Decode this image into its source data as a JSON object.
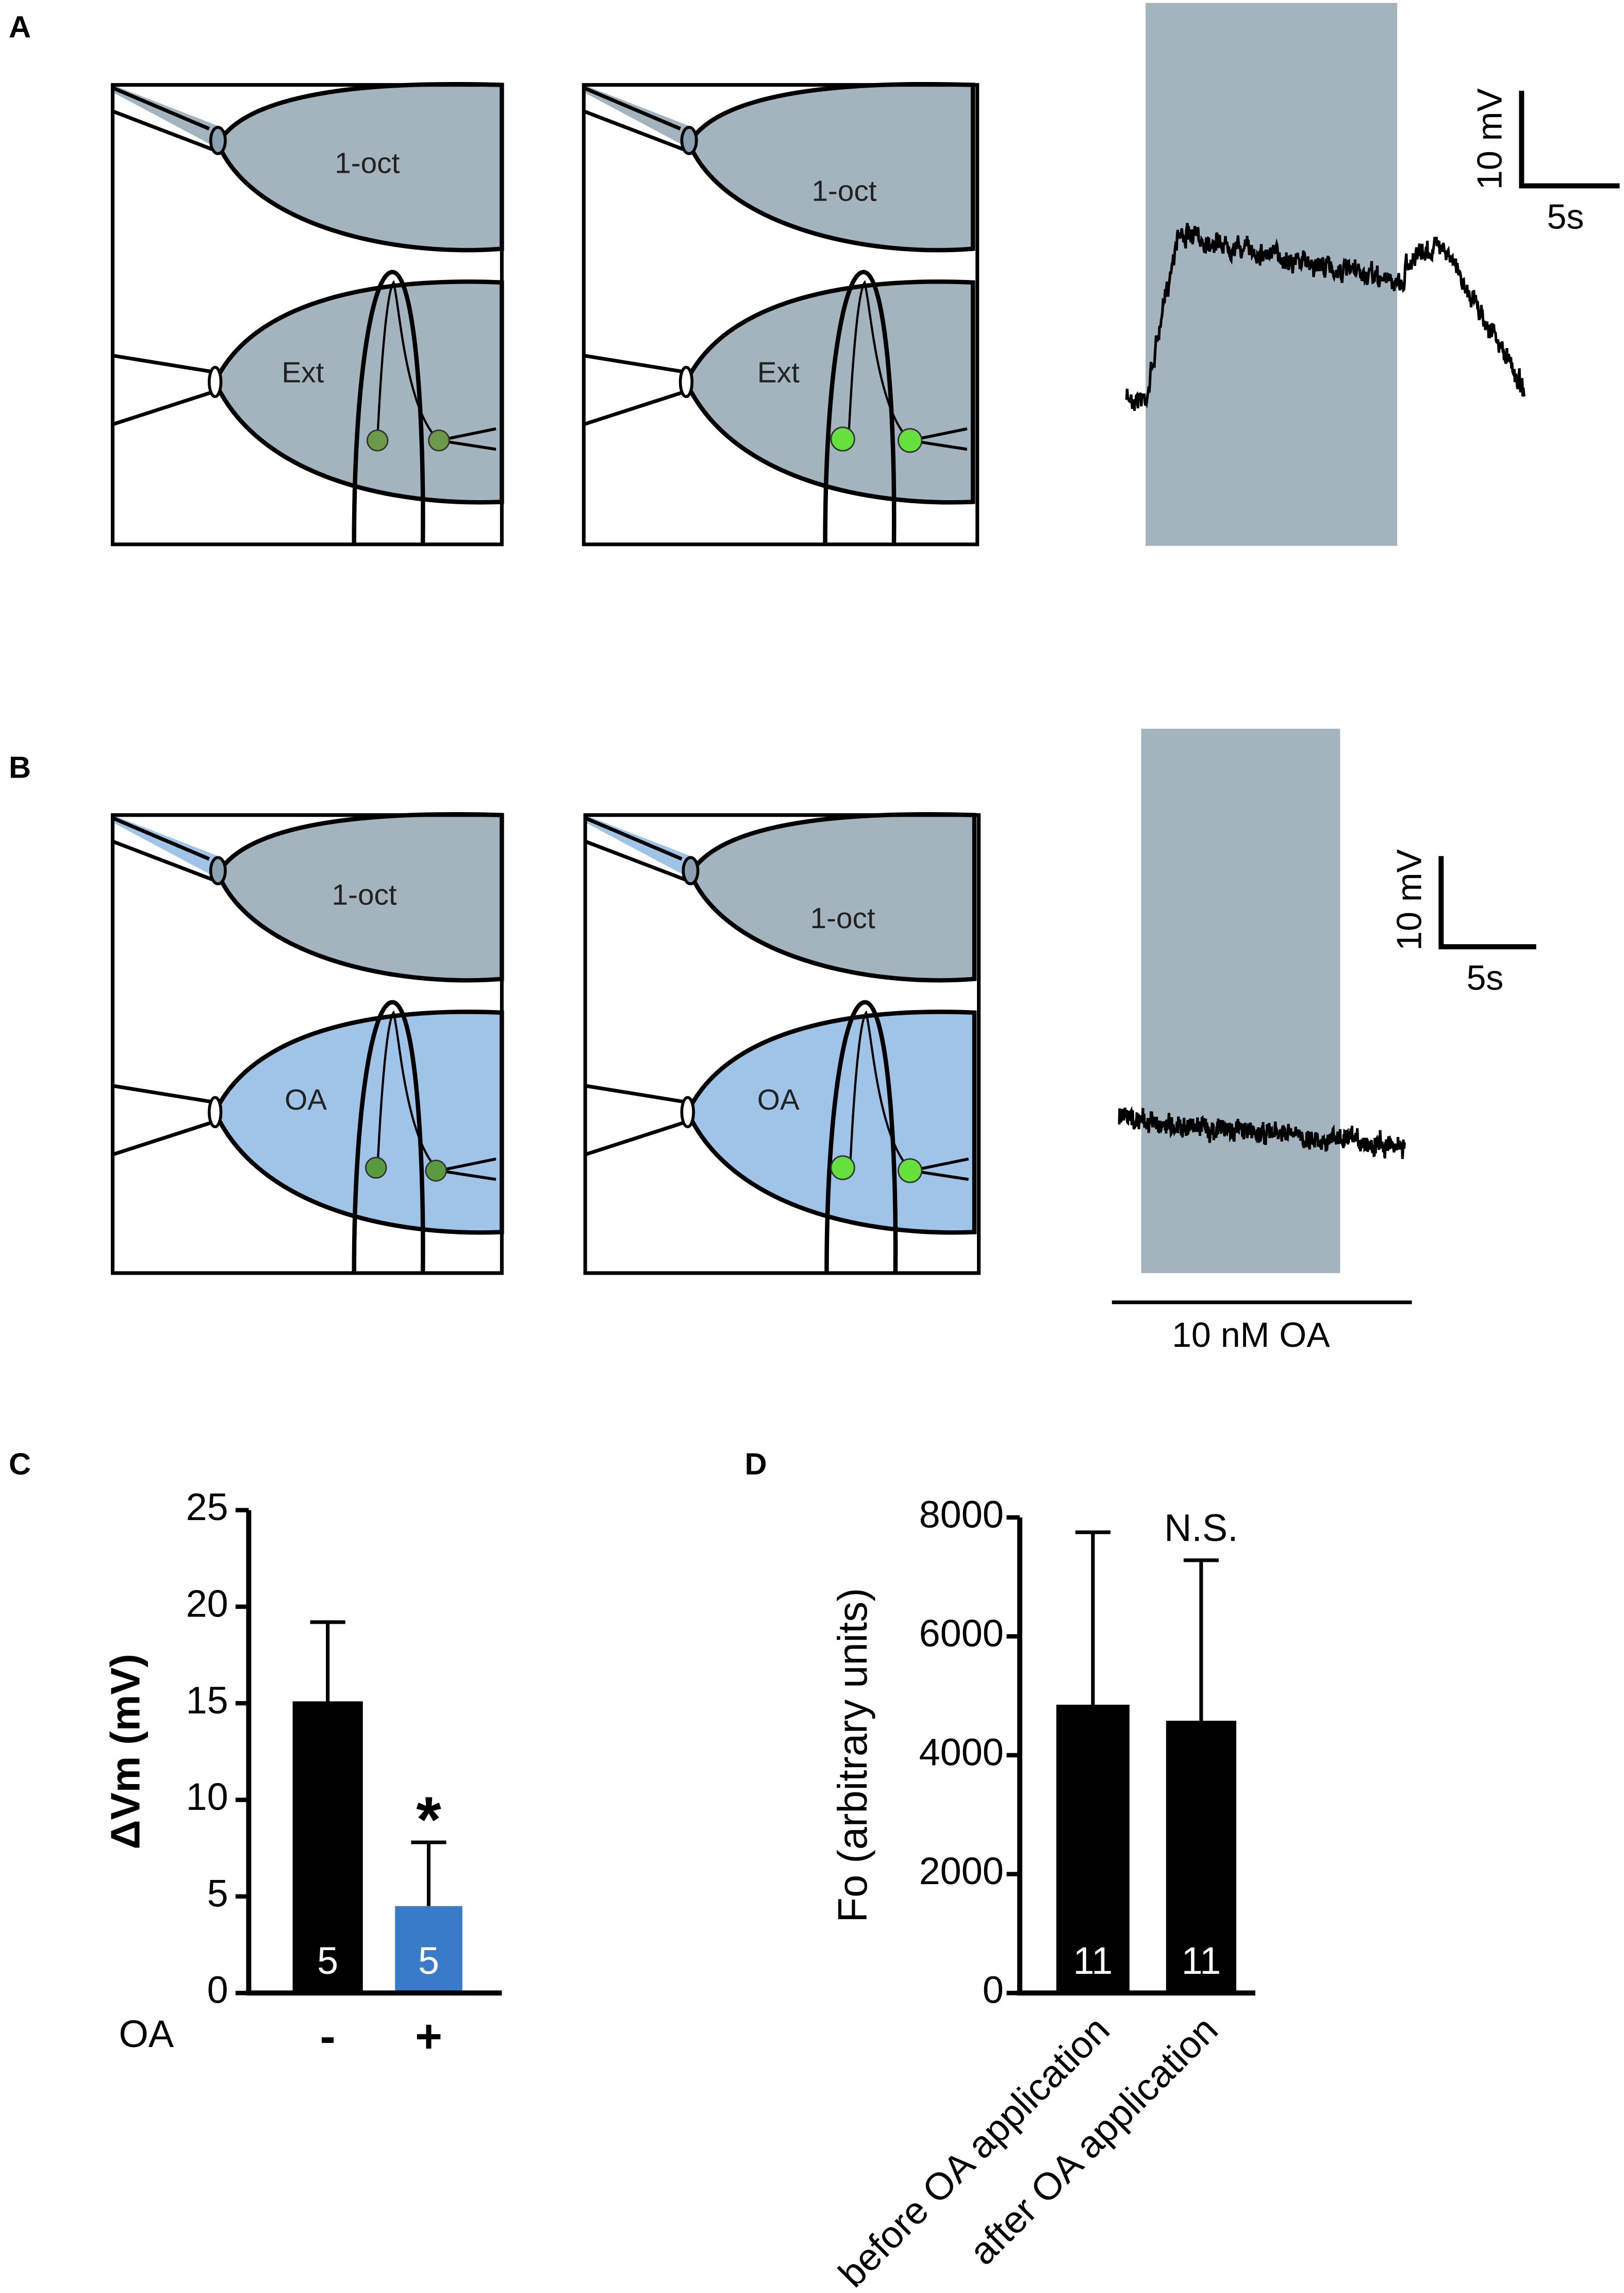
{
  "panel_labels": [
    "A",
    "B",
    "C",
    "D"
  ],
  "panel_a": {
    "diagram_labels": {
      "top": "1-oct",
      "bottom": "Ext"
    },
    "scale_bar": {
      "y": "10 mV",
      "x": "5s"
    }
  },
  "panel_b": {
    "diagram_labels": {
      "top": "1-oct",
      "bottom": "OA"
    },
    "scale_bar": {
      "y": "10 mV",
      "x": "5s"
    },
    "stimulus": "10 nM OA"
  },
  "chart_data": [
    {
      "type": "bar",
      "ylabel": "ΔVm (mV)",
      "xlabel": "OA",
      "categories": [
        "-",
        "+"
      ],
      "values": [
        15.1,
        4.5
      ],
      "errors": [
        4.1,
        3.3
      ],
      "n_labels": [
        "5",
        "5"
      ],
      "colors": [
        "#000000",
        "#3a7bc8"
      ],
      "annotations": [
        null,
        "*"
      ],
      "ylim": [
        0,
        25
      ],
      "yticks": [
        0,
        5,
        10,
        15,
        20,
        25
      ]
    },
    {
      "type": "bar",
      "ylabel": "Fo (arbitrary units)",
      "categories": [
        "before OA application",
        "after OA application"
      ],
      "values": [
        4850,
        4580
      ],
      "errors": [
        2900,
        2700
      ],
      "n_labels": [
        "11",
        "11"
      ],
      "colors": [
        "#000000",
        "#000000"
      ],
      "annotations": [
        null,
        "N.S."
      ],
      "ylim": [
        0,
        8000
      ],
      "yticks": [
        0,
        2000,
        4000,
        6000,
        8000
      ]
    }
  ]
}
